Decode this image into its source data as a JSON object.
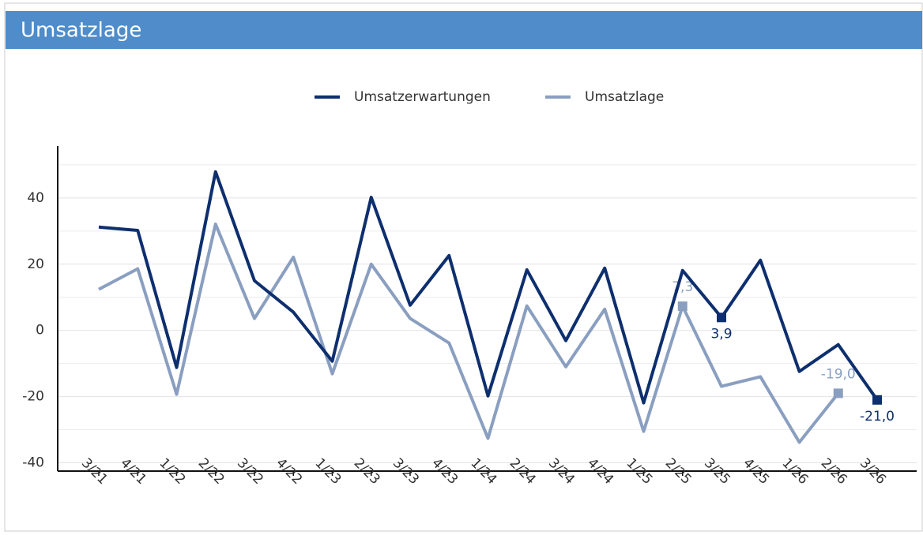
{
  "header": {
    "title": "Umsatzlage"
  },
  "chart_data": {
    "type": "line",
    "categories": [
      "3/21",
      "4/21",
      "1/22",
      "2/22",
      "3/22",
      "4/22",
      "1/23",
      "2/23",
      "3/23",
      "4/23",
      "1/24",
      "2/24",
      "3/24",
      "4/24",
      "1/25",
      "2/25",
      "3/25",
      "4/25",
      "1/26",
      "2/26",
      "3/26"
    ],
    "series": [
      {
        "name": "Umsatzerwartungen",
        "color": "#0e2f6e",
        "values": [
          31.2,
          30.2,
          -11.2,
          47.9,
          15.0,
          5.5,
          -9.3,
          40.2,
          7.6,
          22.6,
          -19.8,
          18.3,
          -3.1,
          18.8,
          -21.9,
          18.1,
          3.9,
          21.2,
          -12.4,
          -4.3,
          -21.0
        ],
        "value_labels": [
          null,
          null,
          null,
          null,
          null,
          null,
          null,
          null,
          null,
          null,
          null,
          null,
          null,
          null,
          null,
          null,
          "3,9",
          null,
          null,
          null,
          "-21,0"
        ]
      },
      {
        "name": "Umsatzlage",
        "color": "#8a9fc0",
        "values": [
          12.4,
          18.6,
          -19.3,
          32.1,
          3.6,
          22.1,
          -13.1,
          20.0,
          3.6,
          -3.8,
          -32.6,
          7.4,
          -11.0,
          6.4,
          -30.5,
          7.3,
          -16.9,
          -14.0,
          -33.8,
          -19.0,
          null
        ],
        "value_labels": [
          null,
          null,
          null,
          null,
          null,
          null,
          null,
          null,
          null,
          null,
          null,
          null,
          null,
          null,
          null,
          "7,3",
          null,
          null,
          null,
          "-19,0",
          null
        ]
      }
    ],
    "ylim": [
      -42.5,
      55.7
    ],
    "yticks": [
      -40,
      -20,
      0,
      20,
      40
    ],
    "minor_grid": [
      -30,
      -10,
      10,
      30,
      50
    ],
    "grid": true,
    "legend": "top"
  }
}
